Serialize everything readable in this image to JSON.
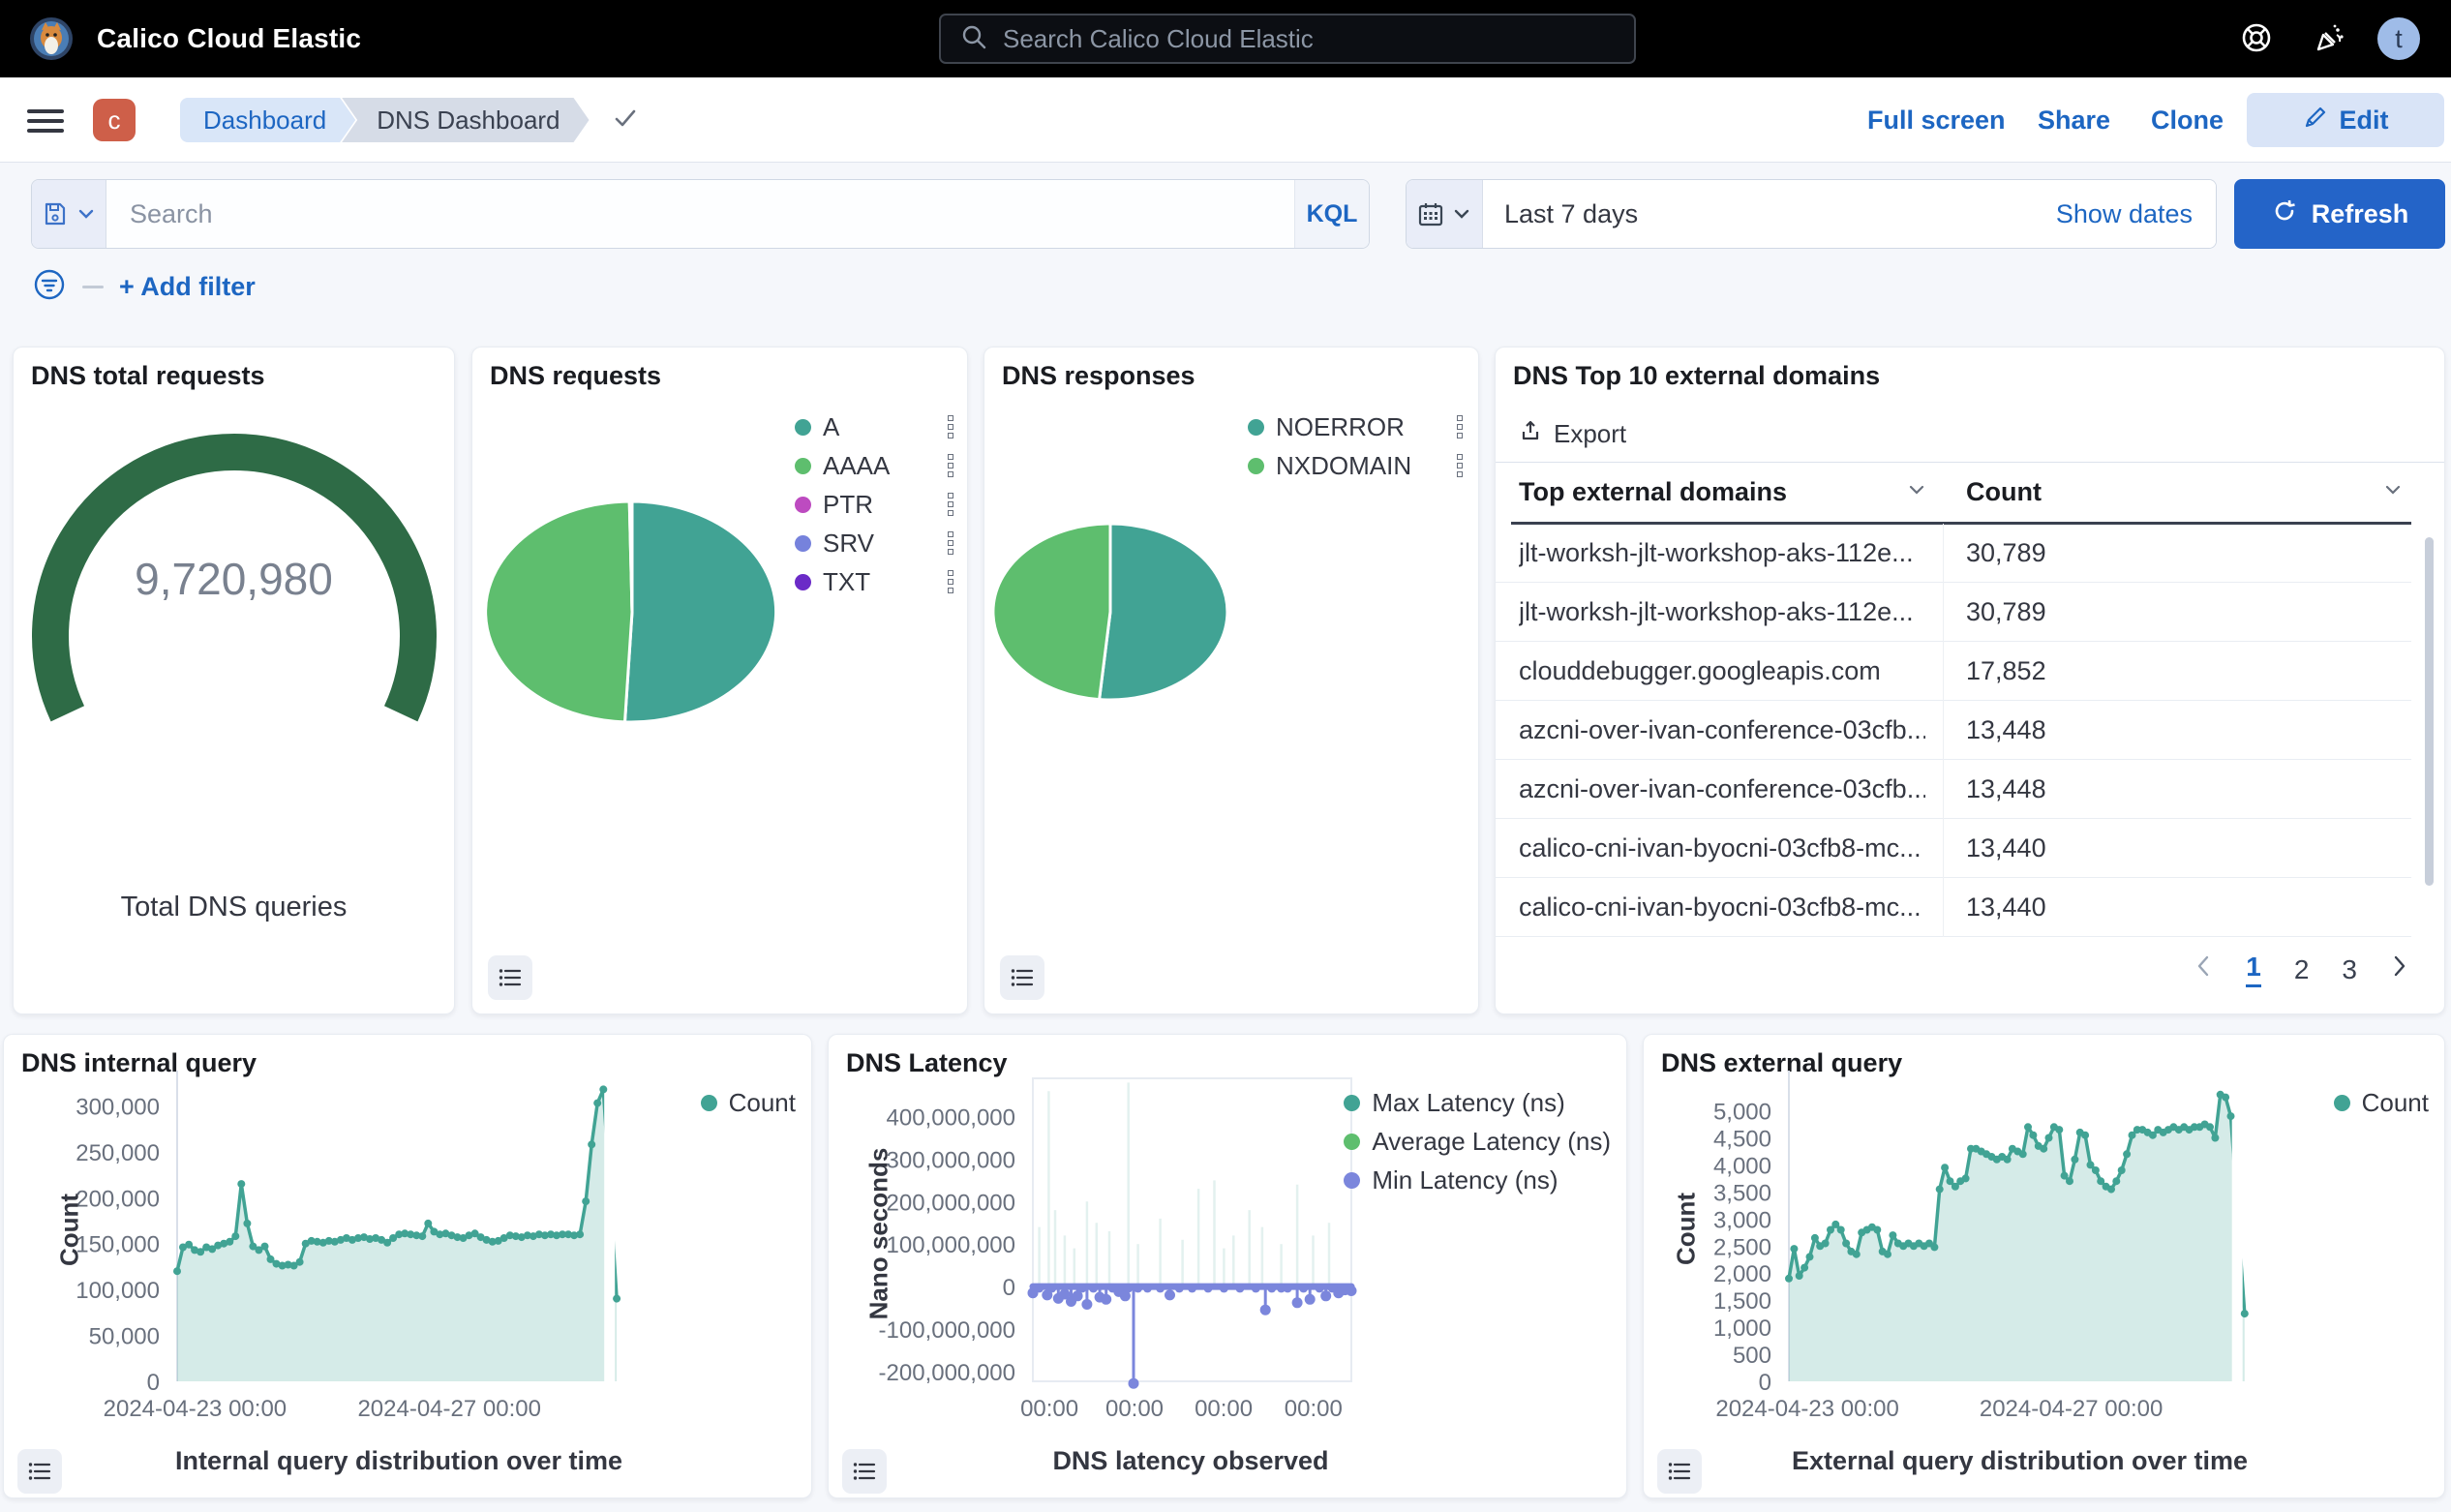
{
  "header": {
    "app_title": "Calico Cloud Elastic",
    "search_placeholder": "Search Calico Cloud Elastic",
    "avatar_initial": "t"
  },
  "nav": {
    "space_initial": "c",
    "breadcrumb_dashboard": "Dashboard",
    "breadcrumb_current": "DNS Dashboard",
    "full_screen": "Full screen",
    "share": "Share",
    "clone": "Clone",
    "edit": "Edit"
  },
  "filter_bar": {
    "search_placeholder": "Search",
    "kql": "KQL",
    "time_range": "Last 7 days",
    "show_dates": "Show dates",
    "refresh": "Refresh",
    "add_filter": "+ Add filter"
  },
  "panels": {
    "gauge": {
      "title": "DNS total requests",
      "value": "9,720,980",
      "caption": "Total DNS queries",
      "chart_data": {
        "type": "gauge",
        "value": 9720980,
        "label": "Total DNS queries",
        "color": "#2E6B46"
      }
    },
    "requests_pie": {
      "title": "DNS requests",
      "chart_data": {
        "type": "pie",
        "slices": [
          {
            "label": "A",
            "value": 50.8,
            "color": "#41A394"
          },
          {
            "label": "AAAA",
            "value": 48.9,
            "color": "#5EBE6E"
          },
          {
            "label": "PTR",
            "value": 0.1,
            "color": "#BD4BC0"
          },
          {
            "label": "SRV",
            "value": 0.1,
            "color": "#7682DC"
          },
          {
            "label": "TXT",
            "value": 0.1,
            "color": "#6B2BC7"
          }
        ]
      }
    },
    "responses_pie": {
      "title": "DNS responses",
      "chart_data": {
        "type": "pie",
        "slices": [
          {
            "label": "NOERROR",
            "value": 51.5,
            "color": "#41A394"
          },
          {
            "label": "NXDOMAIN",
            "value": 48.5,
            "color": "#5EBE6E"
          }
        ]
      }
    },
    "domains_table": {
      "title": "DNS Top 10 external domains",
      "export": "Export",
      "columns": [
        "Top external domains",
        "Count"
      ],
      "rows": [
        [
          "jlt-worksh-jlt-workshop-aks-112e...",
          "30,789"
        ],
        [
          "jlt-worksh-jlt-workshop-aks-112e...",
          "30,789"
        ],
        [
          "clouddebugger.googleapis.com",
          "17,852"
        ],
        [
          "azcni-over-ivan-conference-03cfb...",
          "13,448"
        ],
        [
          "azcni-over-ivan-conference-03cfb...",
          "13,448"
        ],
        [
          "calico-cni-ivan-byocni-03cfb8-mc...",
          "13,440"
        ],
        [
          "calico-cni-ivan-byocni-03cfb8-mc...",
          "13,440"
        ]
      ],
      "pagination": [
        "1",
        "2",
        "3"
      ],
      "active_page": "1"
    },
    "internal_query": {
      "title": "DNS internal query",
      "chart_data": {
        "type": "area",
        "title": "Internal query distribution over time",
        "ylabel": "Count",
        "legend": [
          {
            "label": "Count",
            "color": "#41A394"
          }
        ],
        "color": "#41A394",
        "fill": "rgba(65,163,148,0.22)",
        "ylim": [
          0,
          330000
        ],
        "yticks": [
          {
            "v": 0,
            "label": "0"
          },
          {
            "v": 50000,
            "label": "50,000"
          },
          {
            "v": 100000,
            "label": "100,000"
          },
          {
            "v": 150000,
            "label": "150,000"
          },
          {
            "v": 200000,
            "label": "200,000"
          },
          {
            "v": 250000,
            "label": "250,000"
          },
          {
            "v": 300000,
            "label": "300,000"
          }
        ],
        "xticks": [
          {
            "f": 0.04,
            "label": "2024-04-23 00:00"
          },
          {
            "f": 0.61,
            "label": "2024-04-27 00:00"
          }
        ],
        "values": [
          120000,
          146000,
          149000,
          143000,
          141000,
          146000,
          144000,
          148000,
          150000,
          152000,
          158000,
          215000,
          172000,
          147000,
          143000,
          147000,
          133000,
          128000,
          126000,
          127000,
          126000,
          130000,
          150000,
          153000,
          152000,
          151000,
          153000,
          152000,
          154000,
          156000,
          154000,
          156000,
          157000,
          155000,
          156000,
          154000,
          151000,
          156000,
          160000,
          161000,
          160000,
          159000,
          158000,
          172000,
          163000,
          160000,
          161000,
          159000,
          157000,
          156000,
          159000,
          161000,
          157000,
          154000,
          152000,
          153000,
          156000,
          159000,
          158000,
          157000,
          159000,
          158000,
          160000,
          159000,
          160000,
          159000,
          160000,
          160000,
          159000,
          160000,
          196000,
          258000,
          303000,
          318000
        ],
        "last_value": 90000
      }
    },
    "latency": {
      "title": "DNS Latency",
      "chart_data": {
        "type": "line",
        "title": "DNS latency observed",
        "ylabel": "Nano seconds",
        "legend": [
          {
            "label": "Max Latency (ns)",
            "color": "#41A394"
          },
          {
            "label": "Average Latency (ns)",
            "color": "#5EBE6E"
          },
          {
            "label": "Min Latency (ns)",
            "color": "#7B86DC"
          }
        ],
        "min_color": "#7B86DC",
        "ylim": [
          -223000000,
          490000000
        ],
        "yticks": [
          {
            "v": 400000000,
            "label": "400,000,000"
          },
          {
            "v": 300000000,
            "label": "300,000,000"
          },
          {
            "v": 200000000,
            "label": "200,000,000"
          },
          {
            "v": 100000000,
            "label": "100,000,000"
          },
          {
            "v": 0,
            "label": "0"
          },
          {
            "v": -100000000,
            "label": "-100,000,000"
          },
          {
            "v": -200000000,
            "label": "-200,000,000"
          }
        ],
        "xticks": [
          {
            "f": 0.052,
            "label": "00:00"
          },
          {
            "f": 0.319,
            "label": "00:00"
          },
          {
            "f": 0.599,
            "label": "00:00"
          },
          {
            "f": 0.881,
            "label": "00:00"
          }
        ],
        "min_points_millions": [
          [
            0,
            -15
          ],
          [
            0.02,
            -4
          ],
          [
            0.045,
            -20
          ],
          [
            0.06,
            -4
          ],
          [
            0.08,
            -28
          ],
          [
            0.1,
            -18
          ],
          [
            0.12,
            -35
          ],
          [
            0.14,
            -22
          ],
          [
            0.155,
            -4
          ],
          [
            0.17,
            -42
          ],
          [
            0.19,
            -4
          ],
          [
            0.21,
            -25
          ],
          [
            0.23,
            -30
          ],
          [
            0.25,
            -4
          ],
          [
            0.27,
            -12
          ],
          [
            0.29,
            -22
          ],
          [
            0.3,
            -4
          ],
          [
            0.316,
            -228
          ],
          [
            0.33,
            -4
          ],
          [
            0.36,
            -4
          ],
          [
            0.4,
            -4
          ],
          [
            0.43,
            -20
          ],
          [
            0.46,
            -4
          ],
          [
            0.5,
            -4
          ],
          [
            0.55,
            -4
          ],
          [
            0.6,
            -4
          ],
          [
            0.65,
            -4
          ],
          [
            0.7,
            -4
          ],
          [
            0.73,
            -55
          ],
          [
            0.75,
            -4
          ],
          [
            0.78,
            -4
          ],
          [
            0.8,
            -4
          ],
          [
            0.83,
            -38
          ],
          [
            0.85,
            -4
          ],
          [
            0.87,
            -30
          ],
          [
            0.9,
            -4
          ],
          [
            0.92,
            -22
          ],
          [
            0.94,
            -4
          ],
          [
            0.96,
            -15
          ],
          [
            0.98,
            -8
          ],
          [
            1,
            -10
          ]
        ],
        "max_spikes_millions": [
          [
            0.02,
            140
          ],
          [
            0.05,
            460
          ],
          [
            0.07,
            180
          ],
          [
            0.1,
            120
          ],
          [
            0.13,
            90
          ],
          [
            0.17,
            200
          ],
          [
            0.2,
            150
          ],
          [
            0.24,
            130
          ],
          [
            0.3,
            480
          ],
          [
            0.33,
            100
          ],
          [
            0.4,
            160
          ],
          [
            0.47,
            110
          ],
          [
            0.52,
            230
          ],
          [
            0.57,
            250
          ],
          [
            0.6,
            90
          ],
          [
            0.63,
            120
          ],
          [
            0.68,
            180
          ],
          [
            0.72,
            140
          ],
          [
            0.78,
            100
          ],
          [
            0.83,
            240
          ],
          [
            0.88,
            120
          ],
          [
            0.93,
            150
          ]
        ]
      }
    },
    "external_query": {
      "title": "DNS external query",
      "chart_data": {
        "type": "area",
        "title": "External query distribution over time",
        "ylabel": "Count",
        "legend": [
          {
            "label": "Count",
            "color": "#41A394"
          }
        ],
        "color": "#41A394",
        "fill": "rgba(65,163,148,0.22)",
        "ylim": [
          0,
          5600
        ],
        "yticks": [
          {
            "v": 0,
            "label": "0"
          },
          {
            "v": 500,
            "label": "500"
          },
          {
            "v": 1000,
            "label": "1,000"
          },
          {
            "v": 1500,
            "label": "1,500"
          },
          {
            "v": 2000,
            "label": "2,000"
          },
          {
            "v": 2500,
            "label": "2,500"
          },
          {
            "v": 3000,
            "label": "3,000"
          },
          {
            "v": 3500,
            "label": "3,500"
          },
          {
            "v": 4000,
            "label": "4,000"
          },
          {
            "v": 4500,
            "label": "4,500"
          },
          {
            "v": 5000,
            "label": "5,000"
          }
        ],
        "xticks": [
          {
            "f": 0.04,
            "label": "2024-04-23 00:00"
          },
          {
            "f": 0.61,
            "label": "2024-04-27 00:00"
          }
        ],
        "values": [
          1900,
          2450,
          1950,
          2100,
          2300,
          2650,
          2500,
          2550,
          2800,
          2900,
          2800,
          2550,
          2400,
          2350,
          2750,
          2800,
          2850,
          2800,
          2400,
          2350,
          2700,
          2550,
          2500,
          2550,
          2500,
          2550,
          2500,
          2550,
          2480,
          3550,
          3950,
          3700,
          3600,
          3700,
          3750,
          4300,
          4300,
          4250,
          4200,
          4150,
          4100,
          4150,
          4100,
          4300,
          4250,
          4200,
          4700,
          4550,
          4350,
          4300,
          4500,
          4700,
          4650,
          3800,
          3700,
          4100,
          4600,
          4550,
          4000,
          3900,
          3700,
          3600,
          3550,
          3700,
          3900,
          4200,
          4550,
          4650,
          4650,
          4600,
          4550,
          4650,
          4600,
          4650,
          4700,
          4650,
          4700,
          4650,
          4700,
          4700,
          4750,
          4700,
          4500,
          5300,
          5250,
          4900
        ],
        "last_value": 1250
      }
    }
  }
}
